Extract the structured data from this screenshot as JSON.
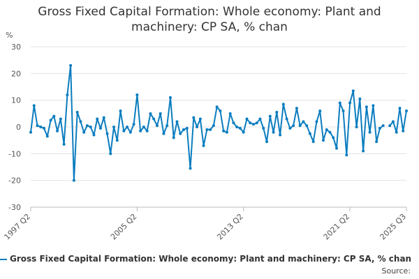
{
  "chart_data": {
    "type": "line",
    "title": "Gross Fixed Capital Formation: Whole economy: Plant and machinery: CP SA, % chan",
    "title_lines": [
      "Gross Fixed Capital Formation: Whole economy: Plant and",
      "machinery: CP SA, % chan"
    ],
    "ylabel": "%",
    "xlabel": "",
    "ylim": [
      -30,
      30
    ],
    "yticks": [
      -30,
      -20,
      -10,
      0,
      10,
      20,
      30
    ],
    "xtick_labels": [
      "1997 Q2",
      "2005 Q2",
      "2013 Q2",
      "2021 Q2",
      "2025 Q3"
    ],
    "grid": true,
    "series_color": "#0b7dbf",
    "series": [
      {
        "name": "Gross Fixed Capital Formation: Whole economy: Plant and machinery: CP SA, % chan",
        "values": [
          -2,
          8,
          0.5,
          0,
          -0.5,
          -3.5,
          2.5,
          4,
          -1.5,
          3,
          -6.5,
          12,
          23,
          -20,
          5.5,
          2,
          -2,
          0.5,
          0,
          -3,
          3,
          -0.5,
          3.5,
          -2.5,
          -10,
          0,
          -5,
          6,
          -1.5,
          0,
          -2,
          1,
          12,
          -1.5,
          0,
          -1.5,
          5,
          3,
          0.5,
          5,
          -2.5,
          0.5,
          11,
          -4,
          2,
          -2.5,
          -1,
          -0.5,
          -15.5,
          3.5,
          0,
          3,
          -7,
          -1,
          -1,
          0.5,
          7.5,
          6,
          -1.5,
          -2,
          5,
          1.5,
          0,
          -0.5,
          -2,
          3,
          1.5,
          1,
          1.5,
          3,
          -0.5,
          -5.5,
          4,
          -2,
          5.5,
          -3,
          8.5,
          3,
          -0.5,
          0.5,
          7,
          0.5,
          2,
          0.5,
          -2.5,
          -5.5,
          2,
          6,
          -5,
          -1,
          -2,
          -4,
          -8,
          9,
          6,
          -10.5,
          9,
          13.5,
          0,
          10.5,
          -9,
          7.5,
          -2,
          8,
          -5.5,
          -0.5,
          0.5,
          null,
          0.5,
          2,
          -2,
          7,
          -1.5,
          6
        ]
      }
    ],
    "x_label_indices": [
      0,
      32,
      64,
      96,
      113
    ]
  },
  "source_label": "Source:"
}
